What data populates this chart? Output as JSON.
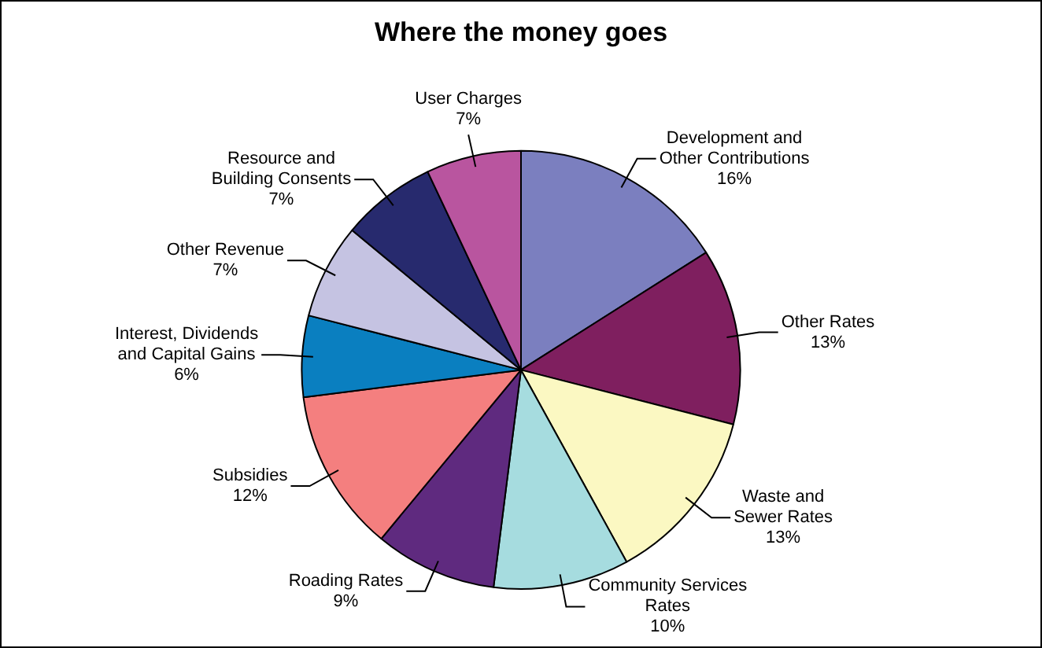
{
  "chart_data": {
    "type": "pie",
    "title": "Where the money goes",
    "categories": [
      "Development and\nOther Contributions",
      "Other Rates",
      "Waste and\nSewer Rates",
      "Community Services\nRates",
      "Roading Rates",
      "Subsidies",
      "Interest, Dividends\nand Capital Gains",
      "Other Revenue",
      "Resource and\nBuilding Consents",
      "User Charges"
    ],
    "values": [
      16,
      13,
      13,
      10,
      9,
      12,
      6,
      7,
      7,
      7
    ],
    "value_labels": [
      "16%",
      "13%",
      "13%",
      "10%",
      "9%",
      "12%",
      "6%",
      "7%",
      "7%",
      "7%"
    ],
    "colors": [
      "#7b7fbf",
      "#7f1f5f",
      "#fbf8c2",
      "#a6dcdf",
      "#5f2a7f",
      "#f47f7f",
      "#0a7fc0",
      "#c5c3e2",
      "#272a6e",
      "#b9559f"
    ]
  }
}
